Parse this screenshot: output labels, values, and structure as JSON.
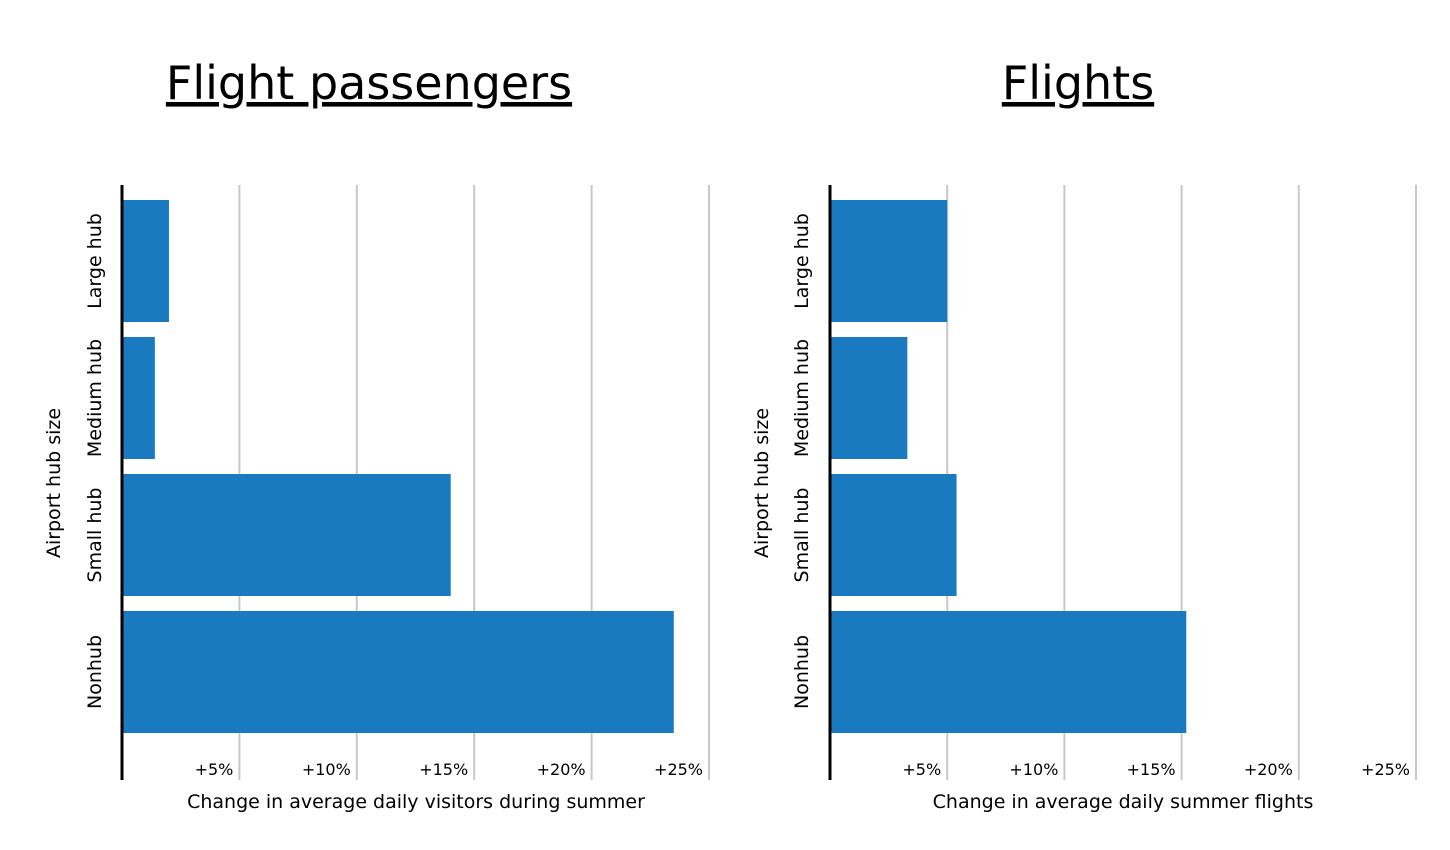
{
  "chart_data": [
    {
      "type": "bar",
      "orientation": "horizontal",
      "title": "Flight passengers",
      "xlabel": "Change in average daily visitors during summer",
      "ylabel": "Airport hub size",
      "categories": [
        "Large hub",
        "Medium hub",
        "Small hub",
        "Nonhub"
      ],
      "values": [
        2,
        1.4,
        14,
        23.5
      ],
      "xlim": [
        0,
        25
      ],
      "ticks": [
        5,
        10,
        15,
        20,
        25
      ],
      "tick_labels": [
        "+5%",
        "+10%",
        "+15%",
        "+20%",
        "+25%"
      ],
      "bar_color": "#1a7abf",
      "grid": true
    },
    {
      "type": "bar",
      "orientation": "horizontal",
      "title": "Flights",
      "xlabel": "Change in average daily summer flights",
      "ylabel": "Airport hub size",
      "categories": [
        "Large hub",
        "Medium hub",
        "Small hub",
        "Nonhub"
      ],
      "values": [
        5,
        3.3,
        5.4,
        15.2
      ],
      "xlim": [
        0,
        25
      ],
      "ticks": [
        5,
        10,
        15,
        20,
        25
      ],
      "tick_labels": [
        "+5%",
        "+10%",
        "+15%",
        "+20%",
        "+25%"
      ],
      "bar_color": "#1a7abf",
      "grid": true
    }
  ]
}
